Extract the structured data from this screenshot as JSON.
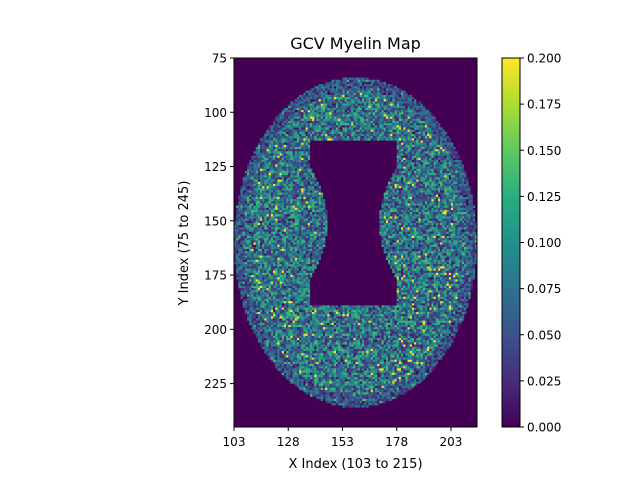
{
  "chart_data": {
    "type": "heatmap",
    "title": "GCV Myelin Map",
    "xlabel": "X Index (103 to 215)",
    "ylabel": "Y Index (75 to 245)",
    "x_ticks": [
      103,
      128,
      153,
      178,
      203
    ],
    "y_ticks": [
      75,
      100,
      125,
      150,
      175,
      200,
      225
    ],
    "x_range": [
      103,
      215
    ],
    "y_range": [
      75,
      245
    ],
    "colormap": "viridis",
    "colorbar": {
      "range": [
        0.0,
        0.2
      ],
      "tick_labels": [
        "0.000",
        "0.025",
        "0.050",
        "0.075",
        "0.100",
        "0.125",
        "0.150",
        "0.175",
        "0.200"
      ]
    },
    "grid": false,
    "description_of_field": {
      "brain_ellipse_center": [
        159,
        160
      ],
      "brain_semi_axes": [
        56,
        76
      ],
      "background_value": 0.0,
      "ventricle_value": 0.0,
      "typical_tissue_value": 0.1
    }
  }
}
